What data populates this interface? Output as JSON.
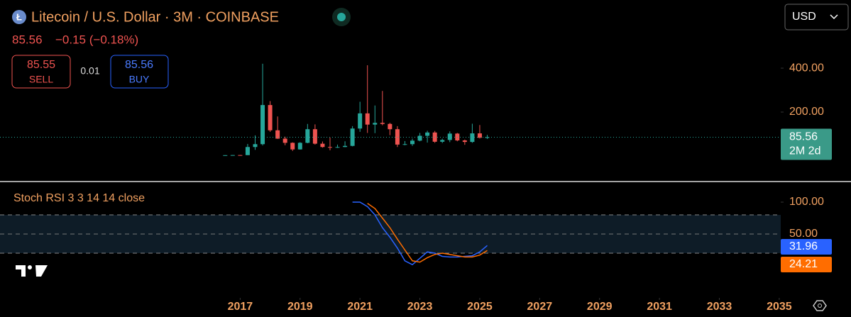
{
  "header": {
    "title": "Litecoin / U.S. Dollar · 3M · COINBASE",
    "price": "85.56",
    "change": "−0.15 (−0.18%)",
    "sell_price": "85.55",
    "sell_label": "SELL",
    "spread": "0.01",
    "buy_price": "85.56",
    "buy_label": "BUY",
    "currency": "USD",
    "countdown": "2M 2d"
  },
  "chart_data": [
    {
      "type": "candlestick",
      "up_color": "#26a69a",
      "down_color": "#ef5350",
      "xlim": [
        2008.98,
        2035.05
      ],
      "ylim": [
        -113,
        710
      ],
      "yticks": [
        {
          "value": 200,
          "label": "200.00"
        },
        {
          "value": 400,
          "label": "400.00"
        }
      ],
      "x": [
        2016.5,
        2016.75,
        2017.0,
        2017.25,
        2017.5,
        2017.75,
        2018.0,
        2018.25,
        2018.5,
        2018.75,
        2019.0,
        2019.25,
        2019.5,
        2019.75,
        2020.0,
        2020.25,
        2020.5,
        2020.75,
        2021.0,
        2021.25,
        2021.5,
        2021.75,
        2022.0,
        2022.25,
        2022.5,
        2022.75,
        2023.0,
        2023.25,
        2023.5,
        2023.75,
        2024.0,
        2024.25,
        2024.5,
        2024.75,
        2025.0,
        2025.25
      ],
      "open": [
        3.7,
        3.8,
        4.3,
        4.0,
        41,
        54,
        232,
        117,
        79,
        60,
        30,
        60,
        122,
        56,
        41,
        39,
        41,
        46,
        125,
        194,
        143,
        151,
        146,
        122,
        52,
        54,
        70,
        92,
        107,
        65,
        73,
        102,
        71,
        64,
        103,
        83
      ],
      "high": [
        4.2,
        4.5,
        4.9,
        55,
        94,
        420,
        250,
        180,
        88,
        62,
        63,
        146,
        144,
        66,
        84,
        52,
        67,
        136,
        247,
        413,
        230,
        296,
        151,
        136,
        68,
        79,
        105,
        115,
        114,
        79,
        112,
        105,
        75,
        147,
        141,
        96
      ],
      "low": [
        3.5,
        3.5,
        3.6,
        3.9,
        28,
        48,
        110,
        78,
        49,
        23,
        29,
        58,
        52,
        38,
        26,
        37,
        40,
        44,
        110,
        105,
        104,
        140,
        95,
        41,
        49,
        46,
        67,
        61,
        60,
        59,
        63,
        67,
        51,
        60,
        80,
        78
      ],
      "close": [
        3.8,
        4.3,
        4.0,
        41,
        54,
        232,
        117,
        79,
        60,
        30,
        60,
        122,
        56,
        41,
        39,
        41,
        46,
        125,
        194,
        143,
        151,
        146,
        122,
        52,
        54,
        70,
        92,
        107,
        65,
        73,
        102,
        71,
        64,
        103,
        83,
        85.56
      ]
    },
    {
      "type": "line",
      "title": "Stoch RSI 3 3 14 14 close",
      "xlim": [
        2008.98,
        2035.05
      ],
      "ylim": [
        -50,
        130
      ],
      "xticks": [
        2017,
        2019,
        2021,
        2023,
        2025,
        2027,
        2029,
        2031,
        2033,
        2035
      ],
      "yticks": [
        {
          "value": 50,
          "label": "50.00"
        },
        {
          "value": 100,
          "label": "100.00"
        }
      ],
      "bands": [
        20,
        80
      ],
      "band_color": "#0e1c27",
      "x": [
        2020.75,
        2021.0,
        2021.25,
        2021.5,
        2021.75,
        2022.0,
        2022.25,
        2022.5,
        2022.75,
        2023.0,
        2023.25,
        2023.5,
        2023.75,
        2024.0,
        2024.25,
        2024.5,
        2024.75,
        2025.0,
        2025.25
      ],
      "series": [
        {
          "name": "K",
          "color": "#2962ff",
          "values": [
            100,
            100,
            93,
            80,
            60,
            45,
            28,
            8,
            2,
            12,
            22,
            20,
            15,
            14,
            14,
            15,
            16,
            22,
            31.96
          ]
        },
        {
          "name": "D",
          "color": "#ff6d00",
          "values": [
            null,
            null,
            98,
            90,
            75,
            60,
            42,
            25,
            8,
            6,
            13,
            18,
            20,
            18,
            16,
            14,
            14,
            17,
            24.21
          ]
        }
      ]
    }
  ]
}
